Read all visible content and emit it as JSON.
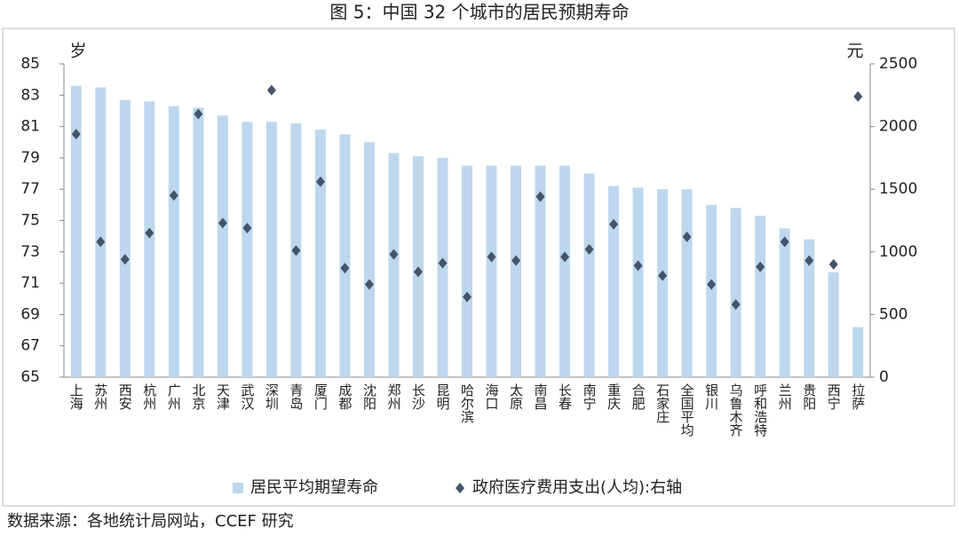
{
  "chart_data": {
    "type": "bar",
    "title": "图 5：中国 32 个城市的居民预期寿命",
    "y_label": "岁",
    "y2_label": "元",
    "source": "数据来源：各地统计局网站，CCEF 研究",
    "categories": [
      "上海",
      "苏州",
      "西安",
      "杭州",
      "广州",
      "北京",
      "天津",
      "武汉",
      "深圳",
      "青岛",
      "厦门",
      "成都",
      "沈阳",
      "郑州",
      "长沙",
      "昆明",
      "哈尔滨",
      "海口",
      "太原",
      "南昌",
      "长春",
      "南宁",
      "重庆",
      "合肥",
      "石家庄",
      "全国平均",
      "银川",
      "乌鲁木齐",
      "呼和浩特",
      "兰州",
      "贵阳",
      "西宁",
      "拉萨"
    ],
    "series": [
      {
        "name": "居民平均期望寿命",
        "type": "bar",
        "color": "#bdd7ee",
        "values": [
          83.6,
          83.5,
          82.7,
          82.6,
          82.3,
          82.2,
          81.7,
          81.3,
          81.3,
          81.2,
          80.8,
          80.5,
          80.0,
          79.3,
          79.1,
          79.0,
          78.5,
          78.5,
          78.5,
          78.5,
          78.5,
          78.0,
          77.2,
          77.1,
          77.0,
          77.0,
          76.0,
          75.8,
          75.3,
          74.5,
          73.8,
          71.7,
          68.2
        ]
      },
      {
        "name": "政府医疗费用支出(人均):右轴",
        "type": "scatter",
        "axis": "y2",
        "color": "#44546a",
        "values": [
          1940,
          1080,
          940,
          1150,
          1450,
          2100,
          1230,
          1190,
          2290,
          1010,
          1560,
          870,
          740,
          980,
          840,
          910,
          640,
          960,
          930,
          1440,
          960,
          1020,
          1220,
          890,
          810,
          1120,
          740,
          580,
          880,
          1080,
          930,
          900,
          2240
        ]
      }
    ],
    "ylim": [
      65,
      85
    ],
    "yticks": [
      65,
      67,
      69,
      71,
      73,
      75,
      77,
      79,
      81,
      83,
      85
    ],
    "y2lim": [
      0,
      2500
    ],
    "y2ticks": [
      0,
      500,
      1000,
      1500,
      2000,
      2500
    ],
    "grid": false,
    "legend": "bottom"
  }
}
